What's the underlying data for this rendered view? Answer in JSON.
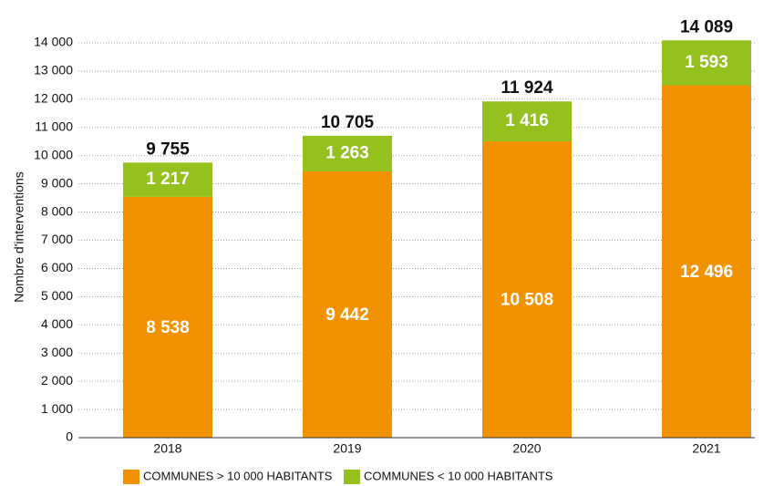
{
  "chart_data": {
    "type": "bar",
    "stacked": true,
    "y_label": "Nombre d'interventions",
    "categories": [
      "2018",
      "2019",
      "2020",
      "2021"
    ],
    "series": [
      {
        "name": "COMMUNES > 10 000 HABITANTS",
        "color": "#f39200",
        "values": [
          8538,
          9442,
          10508,
          12496
        ],
        "value_labels": [
          "8 538",
          "9 442",
          "10 508",
          "12 496"
        ]
      },
      {
        "name": "COMMUNES < 10 000 HABITANTS",
        "color": "#95c11f",
        "values": [
          1217,
          1263,
          1416,
          1593
        ],
        "value_labels": [
          "1 217",
          "1 263",
          "1 416",
          "1 593"
        ]
      }
    ],
    "totals": [
      9755,
      10705,
      11924,
      14089
    ],
    "total_labels": [
      "9 755",
      "10 705",
      "11 924",
      "14 089"
    ],
    "ylim": [
      0,
      14000
    ],
    "yticks": [
      0,
      {
        "value": 1000,
        "label": "1 000"
      },
      {
        "value": 2000,
        "label": "2 000"
      },
      {
        "value": 3000,
        "label": "3 000"
      },
      {
        "value": 4000,
        "label": "4 000"
      },
      {
        "value": 5000,
        "label": "5 000"
      },
      {
        "value": 6000,
        "label": "6 000"
      },
      {
        "value": 7000,
        "label": "7 000"
      },
      {
        "value": 8000,
        "label": "8 000"
      },
      {
        "value": 9000,
        "label": "9 000"
      },
      {
        "value": 10000,
        "label": "10 000"
      },
      {
        "value": 11000,
        "label": "11 000"
      },
      {
        "value": 12000,
        "label": "12 000"
      },
      {
        "value": 13000,
        "label": "13 000"
      },
      {
        "value": 14000,
        "label": "14 000"
      }
    ],
    "grid": true
  }
}
